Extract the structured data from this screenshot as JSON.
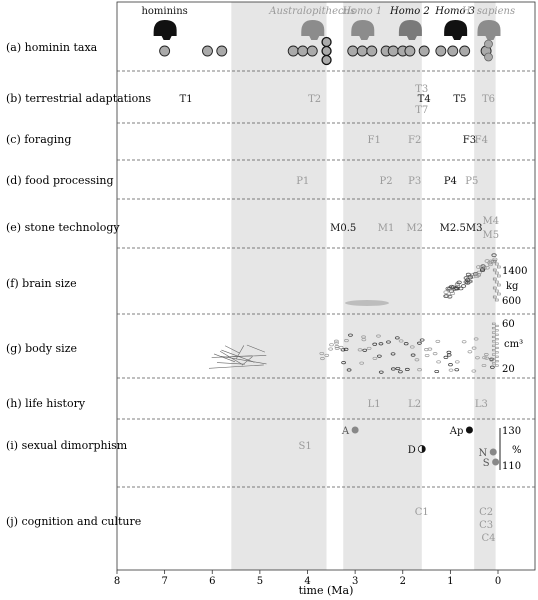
{
  "rows": [
    {
      "label": "(a) hominin taxa"
    },
    {
      "label": "(b) terrestrial adaptations"
    },
    {
      "label": "(c) foraging"
    },
    {
      "label": "(d) food processing"
    },
    {
      "label": "(e) stone technology"
    },
    {
      "label": "(f) brain size"
    },
    {
      "label": "(g) body size"
    },
    {
      "label": "(h) life history"
    },
    {
      "label": "(i) sexual dimorphism"
    },
    {
      "label": "(j) cognition and culture"
    }
  ],
  "taxa": [
    {
      "name": "hominins",
      "t": 7.0,
      "tone": "black"
    },
    {
      "name": "Australopithecus",
      "t": 3.9,
      "tone": "gray"
    },
    {
      "name": "Homo 1",
      "t": 2.85,
      "tone": "gray"
    },
    {
      "name": "Homo 2",
      "t": 1.85,
      "tone": "mixed"
    },
    {
      "name": "Homo 3",
      "t": 0.9,
      "tone": "black"
    },
    {
      "name": "H. sapiens",
      "t": 0.2,
      "tone": "gray"
    }
  ],
  "bands": [
    {
      "from": 5.6,
      "to": 3.6
    },
    {
      "from": 3.25,
      "to": 1.6
    },
    {
      "from": 0.5,
      "to": 0.05
    }
  ],
  "codes": [
    {
      "row": 1,
      "t": 6.55,
      "dy": 0,
      "text": "T1",
      "tone": "black"
    },
    {
      "row": 1,
      "t": 3.85,
      "dy": 0,
      "text": "T2",
      "tone": "gray"
    },
    {
      "row": 1,
      "t": 1.6,
      "dy": -10,
      "text": "T3",
      "tone": "gray"
    },
    {
      "row": 1,
      "t": 1.55,
      "dy": 0,
      "text": "T4",
      "tone": "black"
    },
    {
      "row": 1,
      "t": 1.6,
      "dy": 11,
      "text": "T7",
      "tone": "gray"
    },
    {
      "row": 1,
      "t": 0.8,
      "dy": 0,
      "text": "T5",
      "tone": "black"
    },
    {
      "row": 1,
      "t": 0.2,
      "dy": 0,
      "text": "T6",
      "tone": "gray"
    },
    {
      "row": 2,
      "t": 2.6,
      "dy": 0,
      "text": "F1",
      "tone": "gray"
    },
    {
      "row": 2,
      "t": 1.75,
      "dy": 0,
      "text": "F2",
      "tone": "gray"
    },
    {
      "row": 2,
      "t": 0.6,
      "dy": 0,
      "text": "F3",
      "tone": "black"
    },
    {
      "row": 2,
      "t": 0.35,
      "dy": 0,
      "text": "F4",
      "tone": "gray"
    },
    {
      "row": 3,
      "t": 4.1,
      "dy": 0,
      "text": "P1",
      "tone": "gray"
    },
    {
      "row": 3,
      "t": 2.35,
      "dy": 0,
      "text": "P2",
      "tone": "gray"
    },
    {
      "row": 3,
      "t": 1.75,
      "dy": 0,
      "text": "P3",
      "tone": "gray"
    },
    {
      "row": 3,
      "t": 1.0,
      "dy": 0,
      "text": "P4",
      "tone": "black"
    },
    {
      "row": 3,
      "t": 0.55,
      "dy": 0,
      "text": "P5",
      "tone": "gray"
    },
    {
      "row": 4,
      "t": 3.25,
      "dy": 0,
      "text": "M0.5",
      "tone": "mixed"
    },
    {
      "row": 4,
      "t": 2.35,
      "dy": 0,
      "text": "M1",
      "tone": "gray"
    },
    {
      "row": 4,
      "t": 1.75,
      "dy": 0,
      "text": "M2",
      "tone": "gray"
    },
    {
      "row": 4,
      "t": 0.95,
      "dy": 0,
      "text": "M2.5",
      "tone": "black"
    },
    {
      "row": 4,
      "t": 0.5,
      "dy": 0,
      "text": "M3",
      "tone": "mixed"
    },
    {
      "row": 4,
      "t": 0.15,
      "dy": -7,
      "text": "M4",
      "tone": "gray"
    },
    {
      "row": 4,
      "t": 0.15,
      "dy": 7,
      "text": "M5",
      "tone": "gray"
    },
    {
      "row": 7,
      "t": 2.6,
      "dy": 0,
      "text": "L1",
      "tone": "gray"
    },
    {
      "row": 7,
      "t": 1.75,
      "dy": 0,
      "text": "L2",
      "tone": "gray"
    },
    {
      "row": 7,
      "t": 0.35,
      "dy": 0,
      "text": "L3",
      "tone": "gray"
    },
    {
      "row": 8,
      "t": 4.05,
      "dy": 0,
      "text": "S1",
      "tone": "gray"
    },
    {
      "row": 9,
      "t": 1.6,
      "dy": -10,
      "text": "C1",
      "tone": "gray"
    },
    {
      "row": 9,
      "t": 0.25,
      "dy": -10,
      "text": "C2",
      "tone": "gray"
    },
    {
      "row": 9,
      "t": 0.25,
      "dy": 3,
      "text": "C3",
      "tone": "gray"
    },
    {
      "row": 9,
      "t": 0.2,
      "dy": 16,
      "text": "C4",
      "tone": "gray"
    }
  ],
  "dimorphism_points": [
    {
      "label": "A",
      "t": 3.0,
      "fill": "gray",
      "lpos": "left"
    },
    {
      "label": "D",
      "t": 1.6,
      "fill": "half",
      "lpos": "left"
    },
    {
      "label": "Ap",
      "t": 0.6,
      "fill": "black",
      "lpos": "left"
    },
    {
      "label": "N",
      "t": 0.1,
      "fill": "gray",
      "lpos": "left"
    },
    {
      "label": "S",
      "t": 0.05,
      "fill": "gray",
      "lpos": "left"
    }
  ],
  "scales": {
    "brain": {
      "top": "1400",
      "unit": "kg",
      "bottom": "600"
    },
    "body": {
      "top": "60",
      "unit": "cm³",
      "bottom": "20"
    },
    "dimorphism": {
      "top": "130",
      "unit": "%",
      "bottom": "110"
    }
  },
  "x_axis": {
    "label": "time (Ma)",
    "ticks": [
      "8",
      "7",
      "6",
      "5",
      "4",
      "3",
      "2",
      "1",
      "0"
    ],
    "range": [
      8,
      -0.6
    ]
  },
  "colors": {
    "gray": "#9a9a9a",
    "black": "#111111",
    "band": "#e6e6e6",
    "dash": "#555555"
  }
}
